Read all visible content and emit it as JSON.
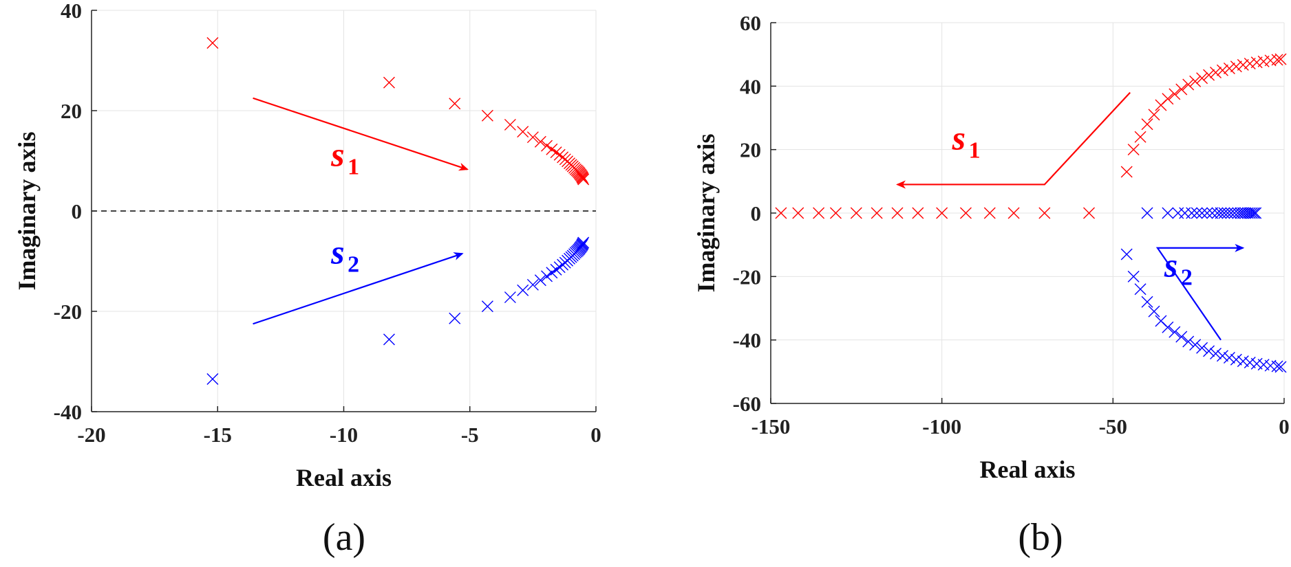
{
  "chart_data": [
    {
      "type": "scatter",
      "panel_label": "(a)",
      "xlabel": "Real axis",
      "ylabel": "Imaginary axis",
      "xlim": [
        -20,
        0
      ],
      "ylim": [
        -40,
        40
      ],
      "xticks": [
        -20,
        -15,
        -10,
        -5,
        0
      ],
      "yticks": [
        -40,
        -20,
        0,
        20,
        40
      ],
      "xtick_labels": [
        "-20",
        "-15",
        "-10",
        "-5",
        "0"
      ],
      "ytick_labels": [
        "-40",
        "-20",
        "0",
        "20",
        "40"
      ],
      "grid": true,
      "zero_line": {
        "y": 0,
        "style": "dashed",
        "color": "#000000"
      },
      "series": [
        {
          "name": "s1",
          "label_main": "s",
          "label_sub": "1",
          "color": "#ff0000",
          "marker": "x",
          "x": [
            -15.2,
            -8.2,
            -5.6,
            -4.3,
            -3.4,
            -2.9,
            -2.5,
            -2.2,
            -1.95,
            -1.75,
            -1.58,
            -1.44,
            -1.32,
            -1.22,
            -1.13,
            -1.05,
            -0.98,
            -0.92,
            -0.86,
            -0.81,
            -0.76,
            -0.72,
            -0.68,
            -0.65,
            -0.62,
            -0.59,
            -0.56,
            -0.54,
            -0.52,
            -0.5
          ],
          "y": [
            33.5,
            25.6,
            21.4,
            19.0,
            17.2,
            15.8,
            14.7,
            13.8,
            13.0,
            12.3,
            11.7,
            11.2,
            10.7,
            10.3,
            9.9,
            9.5,
            9.2,
            8.9,
            8.6,
            8.3,
            8.1,
            7.9,
            7.7,
            7.5,
            7.3,
            7.1,
            6.9,
            6.7,
            6.5,
            6.3
          ],
          "arrow": {
            "from": [
              -13.6,
              22.5
            ],
            "to": [
              -5.1,
              8.3
            ]
          },
          "label_at": [
            -10.5,
            9.0
          ]
        },
        {
          "name": "s2",
          "label_main": "s",
          "label_sub": "2",
          "color": "#0000ff",
          "marker": "x",
          "x": [
            -15.2,
            -8.2,
            -5.6,
            -4.3,
            -3.4,
            -2.9,
            -2.5,
            -2.2,
            -1.95,
            -1.75,
            -1.58,
            -1.44,
            -1.32,
            -1.22,
            -1.13,
            -1.05,
            -0.98,
            -0.92,
            -0.86,
            -0.81,
            -0.76,
            -0.72,
            -0.68,
            -0.65,
            -0.62,
            -0.59,
            -0.56,
            -0.54,
            -0.52,
            -0.5
          ],
          "y": [
            -33.5,
            -25.6,
            -21.4,
            -19.0,
            -17.2,
            -15.8,
            -14.7,
            -13.8,
            -13.0,
            -12.3,
            -11.7,
            -11.2,
            -10.7,
            -10.3,
            -9.9,
            -9.5,
            -9.2,
            -8.9,
            -8.6,
            -8.3,
            -8.1,
            -7.9,
            -7.7,
            -7.5,
            -7.3,
            -7.1,
            -6.9,
            -6.7,
            -6.5,
            -6.3
          ],
          "arrow": {
            "from": [
              -13.6,
              -22.5
            ],
            "to": [
              -5.3,
              -8.5
            ]
          },
          "label_at": [
            -10.5,
            -10.5
          ]
        }
      ]
    },
    {
      "type": "scatter",
      "panel_label": "(b)",
      "xlabel": "Real axis",
      "ylabel": "Imaginary axis",
      "xlim": [
        -150,
        0
      ],
      "ylim": [
        -60,
        60
      ],
      "xticks": [
        -150,
        -100,
        -50,
        0
      ],
      "yticks": [
        -60,
        -40,
        -20,
        0,
        20,
        40,
        60
      ],
      "xtick_labels": [
        "-150",
        "-100",
        "-50",
        "0"
      ],
      "ytick_labels": [
        "-60",
        "-40",
        "-20",
        "0",
        "20",
        "40",
        "60"
      ],
      "grid": true,
      "series": [
        {
          "name": "s1",
          "label_main": "s",
          "label_sub": "1",
          "color": "#ff0000",
          "marker": "x",
          "x": [
            -147,
            -142,
            -136,
            -131,
            -125,
            -119,
            -113,
            -107,
            -100,
            -93,
            -86,
            -79,
            -70,
            -57,
            -46,
            -44,
            -42,
            -40,
            -38,
            -36,
            -34,
            -32,
            -30,
            -28,
            -26,
            -24,
            -22,
            -20,
            -18,
            -16,
            -14,
            -12,
            -10,
            -8,
            -6,
            -4,
            -2,
            -1
          ],
          "y": [
            0,
            0,
            0,
            0,
            0,
            0,
            0,
            0,
            0,
            0,
            0,
            0,
            0,
            0,
            13,
            20,
            24,
            28,
            31,
            34,
            36,
            37.5,
            39,
            40.5,
            41.5,
            42.5,
            43.5,
            44.3,
            45,
            45.6,
            46.2,
            46.7,
            47.1,
            47.5,
            47.8,
            48.1,
            48.3,
            48.5
          ],
          "arrow": {
            "from": [
              -45,
              38
            ],
            "to": [
              -70,
              9
            ],
            "then_to": [
              -113,
              9
            ]
          },
          "label_at": [
            -97,
            20
          ]
        },
        {
          "name": "s2",
          "label_main": "s",
          "label_sub": "2",
          "color": "#0000ff",
          "marker": "x",
          "x": [
            -40,
            -34,
            -31,
            -29,
            -27,
            -25.5,
            -24,
            -22.5,
            -21,
            -19.5,
            -18.5,
            -17.5,
            -16.5,
            -15.5,
            -14.5,
            -13.5,
            -12.7,
            -12,
            -11.3,
            -10.6,
            -10,
            -9.4,
            -8.8,
            -8.3,
            -46,
            -44,
            -42,
            -40,
            -38,
            -36,
            -34,
            -32,
            -30,
            -28,
            -26,
            -24,
            -22,
            -20,
            -18,
            -16,
            -14,
            -12,
            -10,
            -8,
            -6,
            -4,
            -2,
            -1
          ],
          "y": [
            0,
            0,
            0,
            0,
            0,
            0,
            0,
            0,
            0,
            0,
            0,
            0,
            0,
            0,
            0,
            0,
            0,
            0,
            0,
            0,
            0,
            0,
            0,
            0,
            -13,
            -20,
            -24,
            -28,
            -31,
            -34,
            -36,
            -37.5,
            -39,
            -40.5,
            -41.5,
            -42.5,
            -43.5,
            -44.3,
            -45,
            -45.6,
            -46.2,
            -46.7,
            -47.1,
            -47.5,
            -47.8,
            -48.1,
            -48.3,
            -48.5
          ],
          "arrow": {
            "from": [
              -18.5,
              -40
            ],
            "to": [
              -37,
              -11
            ],
            "then_to": [
              -12,
              -11
            ]
          },
          "label_at": [
            -35,
            -20
          ]
        }
      ]
    }
  ]
}
